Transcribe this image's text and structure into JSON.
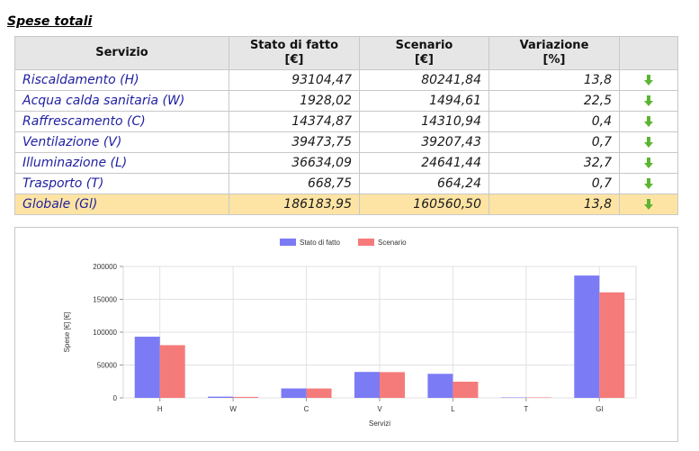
{
  "section_title": "Spese totali",
  "table": {
    "headers": [
      {
        "line1": "Servizio",
        "line2": ""
      },
      {
        "line1": "Stato di fatto",
        "line2": "[€]"
      },
      {
        "line1": "Scenario",
        "line2": "[€]"
      },
      {
        "line1": "Variazione",
        "line2": "[%]"
      }
    ],
    "rows": [
      {
        "name": "Riscaldamento (H)",
        "stato": "93104,47",
        "scenario": "80241,84",
        "variazione": "13,8",
        "icon": "down-arrow-icon"
      },
      {
        "name": "Acqua calda sanitaria (W)",
        "stato": "1928,02",
        "scenario": "1494,61",
        "variazione": "22,5",
        "icon": "down-arrow-icon"
      },
      {
        "name": "Raffrescamento (C)",
        "stato": "14374,87",
        "scenario": "14310,94",
        "variazione": "0,4",
        "icon": "down-arrow-icon"
      },
      {
        "name": "Ventilazione (V)",
        "stato": "39473,75",
        "scenario": "39207,43",
        "variazione": "0,7",
        "icon": "down-arrow-icon"
      },
      {
        "name": "Illuminazione (L)",
        "stato": "36634,09",
        "scenario": "24641,44",
        "variazione": "32,7",
        "icon": "down-arrow-icon"
      },
      {
        "name": "Trasporto (T)",
        "stato": "668,75",
        "scenario": "664,24",
        "variazione": "0,7",
        "icon": "down-arrow-icon"
      }
    ],
    "total": {
      "name": "Globale (Gl)",
      "stato": "186183,95",
      "scenario": "160560,50",
      "variazione": "13,8",
      "icon": "down-arrow-icon"
    }
  },
  "colors": {
    "arrow": "#5cb531",
    "series_stato": "#7b7bf5",
    "series_scenario": "#f57b7b",
    "total_row_bg": "#fde4a4"
  },
  "chart_data": {
    "type": "bar",
    "categories": [
      "H",
      "W",
      "C",
      "V",
      "L",
      "T",
      "Gl"
    ],
    "series": [
      {
        "name": "Stato di fatto",
        "values": [
          93104.47,
          1928.02,
          14374.87,
          39473.75,
          36634.09,
          668.75,
          186183.95
        ]
      },
      {
        "name": "Scenario",
        "values": [
          80241.84,
          1494.61,
          14310.94,
          39207.43,
          24641.44,
          664.24,
          160560.5
        ]
      }
    ],
    "xlabel": "Servizi",
    "ylabel": "Spese [€] [€]",
    "ylim": [
      0,
      200000
    ],
    "yticks": [
      0,
      50000,
      100000,
      150000,
      200000
    ],
    "ytick_labels": [
      "0",
      "50000",
      "100000",
      "150000",
      "200000"
    ],
    "grid": true,
    "legend_position": "top-center"
  }
}
